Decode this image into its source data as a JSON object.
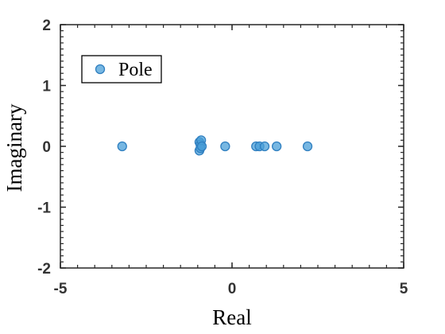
{
  "chart_data": {
    "type": "scatter",
    "xlabel": "Real",
    "ylabel": "Imaginary",
    "xlim": [
      -5,
      5
    ],
    "ylim": [
      -2,
      2
    ],
    "xticks": [
      -5,
      0,
      5
    ],
    "xtick_labels": [
      "-5",
      "0",
      "5"
    ],
    "yticks": [
      -2,
      -1,
      0,
      1,
      2
    ],
    "ytick_labels": [
      "-2",
      "-1",
      "0",
      "1",
      "2"
    ],
    "grid": false,
    "legend": {
      "placement": "top-left",
      "entries": [
        "Pole"
      ]
    },
    "series": [
      {
        "name": "Pole",
        "color": "#4a9fd8",
        "edge_color": "#2f7fc0",
        "points": [
          {
            "x": -3.2,
            "y": 0.0
          },
          {
            "x": -0.95,
            "y": 0.07
          },
          {
            "x": -0.95,
            "y": -0.07
          },
          {
            "x": -0.92,
            "y": 0.03
          },
          {
            "x": -0.92,
            "y": -0.03
          },
          {
            "x": -0.9,
            "y": 0.1
          },
          {
            "x": -0.88,
            "y": 0.0
          },
          {
            "x": -0.2,
            "y": 0.0
          },
          {
            "x": 0.7,
            "y": 0.0
          },
          {
            "x": 0.8,
            "y": 0.0
          },
          {
            "x": 0.95,
            "y": 0.0
          },
          {
            "x": 1.3,
            "y": 0.0
          },
          {
            "x": 2.2,
            "y": 0.0
          }
        ]
      }
    ]
  }
}
